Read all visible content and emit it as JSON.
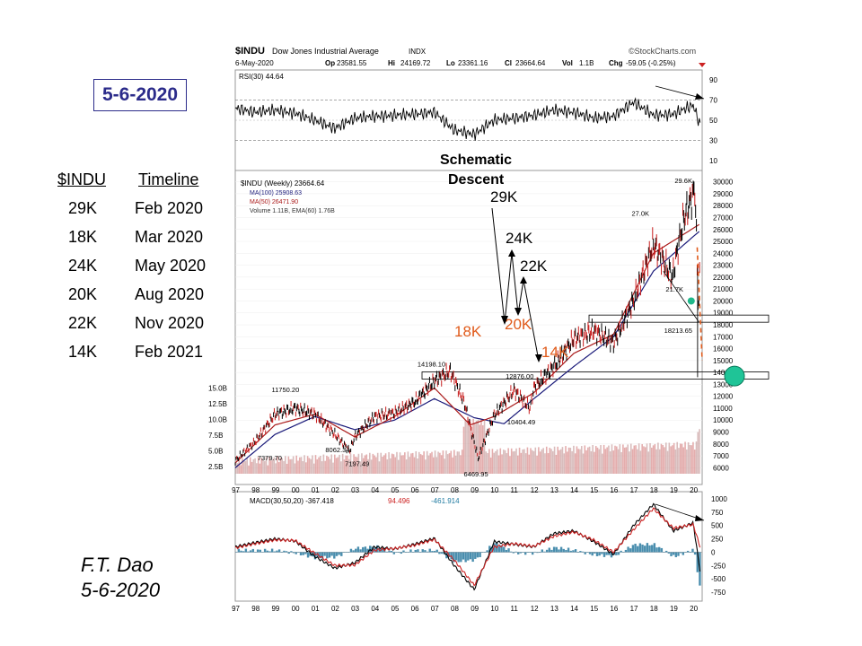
{
  "date_badge": "5-6-2020",
  "timeline": {
    "headers": [
      "$INDU",
      "Timeline"
    ],
    "rows": [
      [
        "29K",
        "Feb 2020"
      ],
      [
        "18K",
        "Mar 2020"
      ],
      [
        "24K",
        "May 2020"
      ],
      [
        "20K",
        "Aug 2020"
      ],
      [
        "22K",
        "Nov 2020"
      ],
      [
        "14K",
        "Feb 2021"
      ]
    ]
  },
  "author": {
    "name": "F.T. Dao",
    "date": "5-6-2020"
  },
  "chart_header": {
    "symbol": "$INDU",
    "name": "Dow Jones Industrial Average",
    "exchange": "INDX",
    "brand": "©StockCharts.com",
    "date": "6-May-2020",
    "open_label": "Op",
    "open": "23581.55",
    "high_label": "Hi",
    "high": "24169.72",
    "low_label": "Lo",
    "low": "23361.16",
    "close_label": "Cl",
    "close": "23664.64",
    "vol_label": "Vol",
    "vol": "1.1B",
    "chg_label": "Chg",
    "chg": "-59.05 (-0.25%)"
  },
  "annotations": {
    "schematic_title": "Schematic",
    "schematic_title2": "Descent",
    "k29": "29K",
    "k24": "24K",
    "k22": "22K",
    "k18": "18K",
    "k20": "20K",
    "k14": "14K"
  },
  "chart_data": [
    {
      "type": "line",
      "title": "RSI(30) 44.64",
      "legend": "RSI(30) 44.64",
      "ylim": [
        0,
        100
      ],
      "y_ticks": [
        10,
        30,
        50,
        70,
        90
      ],
      "x": [
        1997,
        1998,
        1999,
        2000,
        2001,
        2002,
        2003,
        2004,
        2005,
        2006,
        2007,
        2008,
        2009,
        2010,
        2011,
        2012,
        2013,
        2014,
        2015,
        2016,
        2017,
        2018,
        2019,
        2020,
        2020.35
      ],
      "values": [
        62,
        58,
        60,
        57,
        50,
        42,
        52,
        54,
        55,
        56,
        58,
        40,
        36,
        50,
        52,
        55,
        60,
        58,
        52,
        54,
        68,
        55,
        56,
        65,
        44.64
      ],
      "line_color": "#000000"
    },
    {
      "type": "line",
      "title": "$INDU (Weekly) 23664.64",
      "legend": [
        "$INDU (Weekly) 23664.64",
        "MA(100) 25908.63",
        "MA(50) 26471.90",
        "Volume 1.11B, EMA(60) 1.76B"
      ],
      "x_ticks": [
        "97",
        "98",
        "99",
        "00",
        "01",
        "02",
        "03",
        "04",
        "05",
        "06",
        "07",
        "08",
        "09",
        "10",
        "11",
        "12",
        "13",
        "14",
        "15",
        "16",
        "17",
        "18",
        "19",
        "20"
      ],
      "y_ticks_right": [
        6000,
        7000,
        8000,
        9000,
        10000,
        11000,
        12000,
        13000,
        14000,
        15000,
        16000,
        17000,
        18000,
        19000,
        20000,
        21000,
        22000,
        23000,
        24000,
        25000,
        26000,
        27000,
        28000,
        29000,
        30000
      ],
      "volume_ticks_left": [
        "2.5B",
        "5.0B",
        "7.5B",
        "10.0B",
        "12.5B",
        "15.0B"
      ],
      "price_labels": [
        "29.6K",
        "27.0K",
        "21.7K",
        "18213.65",
        "14198.10",
        "12876.00",
        "11750.20",
        "10404.49",
        "8062.34",
        "7379.70",
        "7197.49",
        "6469.95"
      ],
      "series": [
        {
          "name": "$INDU",
          "x": [
            1997,
            1998,
            1999,
            2000,
            2001,
            2002,
            2002.75,
            2003,
            2004,
            2005,
            2006,
            2007,
            2007.8,
            2008.5,
            2009.2,
            2010,
            2011,
            2011.8,
            2012,
            2013,
            2014,
            2015,
            2016,
            2017,
            2018,
            2018.95,
            2019.5,
            2020.1,
            2020.25,
            2020.35
          ],
          "values": [
            6600,
            8200,
            10500,
            11000,
            10500,
            8800,
            7400,
            8600,
            10300,
            10600,
            11500,
            13300,
            14100,
            11500,
            6800,
            10400,
            12500,
            11000,
            12700,
            14500,
            16800,
            17500,
            16500,
            20000,
            24800,
            22000,
            26800,
            29400,
            19200,
            23664.64
          ]
        },
        {
          "name": "MA(100)",
          "x": [
            1997,
            1999,
            2001,
            2003,
            2005,
            2007,
            2009,
            2010.5,
            2012,
            2014,
            2016,
            2018,
            2020.35
          ],
          "values": [
            6000,
            8800,
            10300,
            9200,
            10000,
            11800,
            10200,
            9700,
            11800,
            14500,
            17000,
            22500,
            25908.63
          ]
        },
        {
          "name": "MA(50)",
          "x": [
            1997,
            1999,
            2001,
            2003,
            2005,
            2007,
            2008.8,
            2010,
            2012,
            2014,
            2016,
            2018,
            2020.35
          ],
          "values": [
            6400,
            9600,
            10500,
            8600,
            10300,
            12700,
            9600,
            10300,
            12300,
            15600,
            17200,
            24000,
            26471.9
          ]
        }
      ],
      "horizontal_levels": [
        18213.65,
        14198.1
      ]
    },
    {
      "type": "line",
      "title": "MACD(30,50,20) -367.418, 94.496, -461.914",
      "legend": [
        "MACD(30,50,20) -367.418",
        "94.496",
        "-461.914"
      ],
      "ylim": [
        -850,
        1000
      ],
      "y_ticks": [
        1000,
        750,
        500,
        250,
        0,
        -250,
        -500,
        -750
      ],
      "series": [
        {
          "name": "MACD",
          "x": [
            1997,
            1998,
            1999,
            2000,
            2001,
            2002,
            2003,
            2004,
            2005,
            2006,
            2007,
            2008,
            2009,
            2010,
            2011,
            2012,
            2013,
            2014,
            2015,
            2016,
            2017,
            2018,
            2019,
            2020,
            2020.35
          ],
          "values": [
            100,
            180,
            250,
            210,
            -80,
            -300,
            -200,
            100,
            60,
            150,
            260,
            -250,
            -700,
            200,
            150,
            100,
            350,
            400,
            200,
            -40,
            500,
            900,
            400,
            550,
            -367.418
          ]
        },
        {
          "name": "Signal",
          "x": [
            1997,
            1998,
            1999,
            2000,
            2001,
            2002,
            2003,
            2004,
            2005,
            2006,
            2007,
            2008,
            2009,
            2010,
            2011,
            2012,
            2013,
            2014,
            2015,
            2016,
            2017,
            2018,
            2019,
            2020,
            2020.35
          ],
          "values": [
            80,
            160,
            230,
            220,
            -20,
            -250,
            -240,
            40,
            70,
            130,
            240,
            -150,
            -620,
            100,
            160,
            110,
            300,
            380,
            230,
            0,
            420,
            820,
            450,
            520,
            94.496
          ]
        }
      ],
      "histogram_last": -461.914,
      "x_ticks": [
        "97",
        "98",
        "99",
        "00",
        "01",
        "02",
        "03",
        "04",
        "05",
        "06",
        "07",
        "08",
        "09",
        "10",
        "11",
        "12",
        "13",
        "14",
        "15",
        "16",
        "17",
        "18",
        "19",
        "20"
      ]
    }
  ]
}
